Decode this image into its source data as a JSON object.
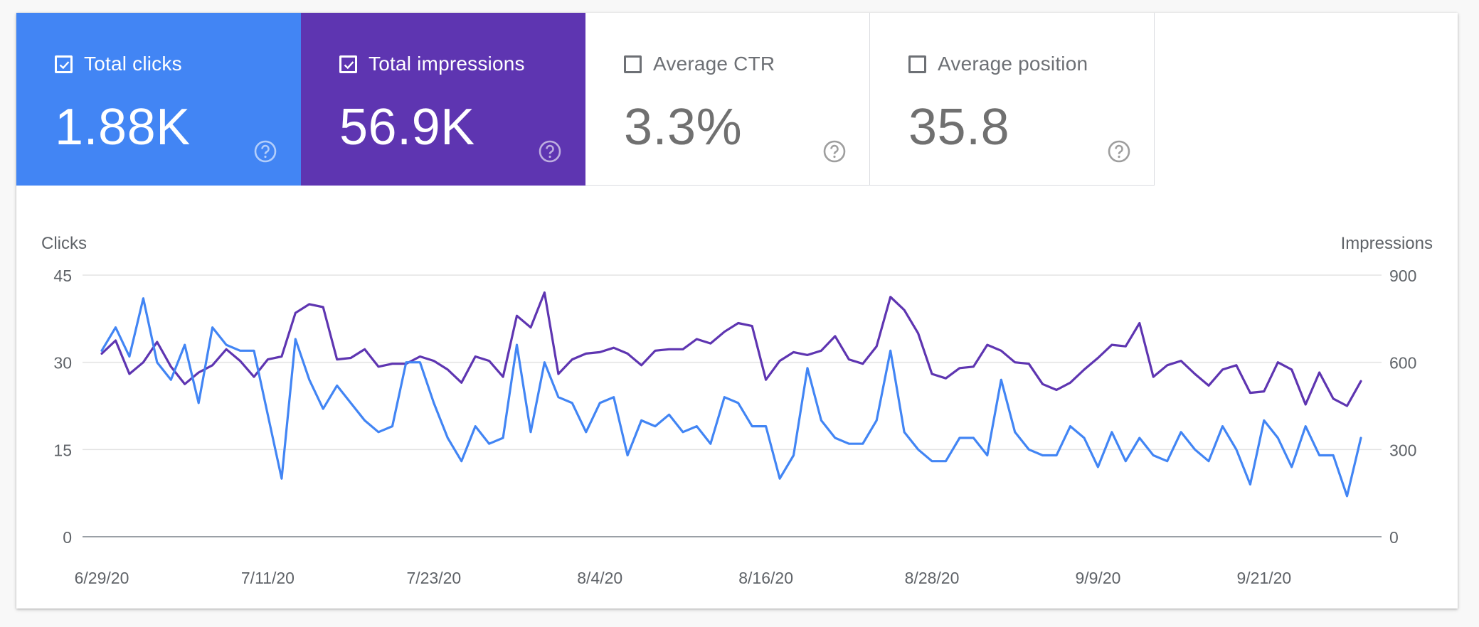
{
  "metrics": {
    "clicks": {
      "label": "Total clicks",
      "value": "1.88K",
      "checked": true
    },
    "impressions": {
      "label": "Total impressions",
      "value": "56.9K",
      "checked": true
    },
    "ctr": {
      "label": "Average CTR",
      "value": "3.3%",
      "checked": false
    },
    "position": {
      "label": "Average position",
      "value": "35.8",
      "checked": false
    }
  },
  "icons": {
    "checkbox_checked": "checkbox-checked-icon",
    "checkbox_unchecked": "checkbox-unchecked-icon",
    "help": "help-circle-icon"
  },
  "colors": {
    "clicks": "#4285f4",
    "impressions": "#5e35b1",
    "card_bg": "#ffffff"
  },
  "chart_data": {
    "type": "line",
    "title": "",
    "xlabel": "",
    "ylabel": "Clicks",
    "y2label": "Impressions",
    "ylim": [
      0,
      45
    ],
    "y2lim": [
      0,
      900
    ],
    "yticks": [
      "0",
      "15",
      "30",
      "45"
    ],
    "y2ticks": [
      "0",
      "300",
      "600",
      "900"
    ],
    "grid": true,
    "x_ticks": [
      {
        "label": "6/29/20",
        "index": 0
      },
      {
        "label": "7/11/20",
        "index": 12
      },
      {
        "label": "7/23/20",
        "index": 24
      },
      {
        "label": "8/4/20",
        "index": 36
      },
      {
        "label": "8/16/20",
        "index": 48
      },
      {
        "label": "8/28/20",
        "index": 60
      },
      {
        "label": "9/9/20",
        "index": 72
      },
      {
        "label": "9/21/20",
        "index": 84
      }
    ],
    "series": [
      {
        "name": "Clicks",
        "axis": "left",
        "color": "#4285f4",
        "values": [
          32,
          36,
          31,
          41,
          30,
          27,
          33,
          23,
          36,
          33,
          32,
          32,
          21,
          10,
          34,
          27,
          22,
          26,
          23,
          20,
          18,
          19,
          30,
          30,
          23,
          17,
          13,
          19,
          16,
          17,
          33,
          18,
          30,
          24,
          23,
          18,
          23,
          24,
          14,
          20,
          19,
          21,
          18,
          19,
          16,
          24,
          23,
          19,
          19,
          10,
          14,
          29,
          20,
          17,
          16,
          16,
          20,
          32,
          18,
          15,
          13,
          13,
          17,
          17,
          14,
          27,
          18,
          15,
          14,
          14,
          19,
          17,
          12,
          18,
          13,
          17,
          14,
          13,
          18,
          15,
          13,
          19,
          15,
          9,
          20,
          17,
          12,
          19,
          14,
          14,
          7,
          17
        ]
      },
      {
        "name": "Impressions",
        "axis": "right",
        "color": "#5e35b1",
        "values": [
          630,
          675,
          560,
          600,
          670,
          585,
          525,
          565,
          590,
          645,
          605,
          550,
          610,
          620,
          770,
          800,
          790,
          610,
          615,
          645,
          585,
          595,
          595,
          620,
          605,
          575,
          530,
          620,
          605,
          550,
          760,
          720,
          840,
          560,
          610,
          630,
          635,
          650,
          630,
          590,
          640,
          645,
          645,
          680,
          665,
          705,
          735,
          725,
          540,
          605,
          635,
          625,
          640,
          690,
          610,
          595,
          655,
          825,
          780,
          700,
          560,
          545,
          580,
          585,
          660,
          640,
          600,
          595,
          525,
          505,
          530,
          575,
          615,
          660,
          655,
          735,
          550,
          590,
          605,
          560,
          520,
          575,
          590,
          495,
          500,
          600,
          575,
          455,
          565,
          475,
          450,
          535
        ]
      }
    ]
  }
}
